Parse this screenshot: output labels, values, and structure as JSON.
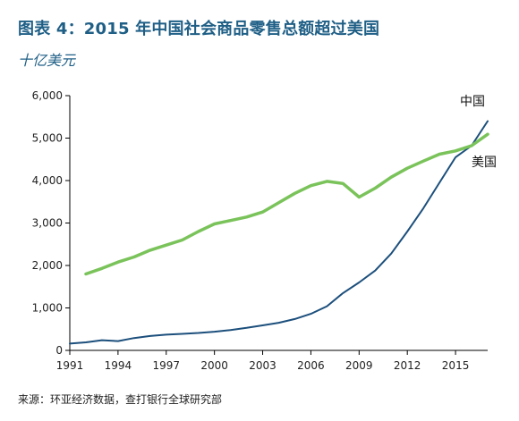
{
  "header": {
    "title": "图表 4：2015 年中国社会商品零售总额超过美国",
    "subtitle": "十亿美元"
  },
  "footer": {
    "source": "来源：环亚经济数据，查打银行全球研究部"
  },
  "colors": {
    "title": "#1f5f86",
    "china": "#1c4f7c",
    "usa": "#7ac35a",
    "axis": "#000000",
    "text": "#222222"
  },
  "chart_data": {
    "type": "line",
    "title": "图表 4：2015 年中国社会商品零售总额超过美国",
    "subtitle": "十亿美元",
    "xlabel": "",
    "ylabel": "",
    "xlim": [
      1991,
      2017
    ],
    "ylim": [
      0,
      6000
    ],
    "x_ticks": [
      1991,
      1994,
      1997,
      2000,
      2003,
      2006,
      2009,
      2012,
      2015
    ],
    "x_tick_labels": [
      "1991",
      "1994",
      "1997",
      "2000",
      "2003",
      "2006",
      "2009",
      "2012",
      "2015"
    ],
    "y_ticks": [
      0,
      1000,
      2000,
      3000,
      4000,
      5000,
      6000
    ],
    "y_tick_labels": [
      "0",
      "1,000",
      "2,000",
      "3,000",
      "4,000",
      "5,000",
      "6,000"
    ],
    "grid": false,
    "series": [
      {
        "name": "中国",
        "color": "#1c4f7c",
        "x": [
          1991,
          1992,
          1993,
          1994,
          1995,
          1996,
          1997,
          1998,
          1999,
          2000,
          2001,
          2002,
          2003,
          2004,
          2005,
          2006,
          2007,
          2008,
          2009,
          2010,
          2011,
          2012,
          2013,
          2014,
          2015,
          2016,
          2017
        ],
        "values": [
          160,
          190,
          240,
          220,
          290,
          340,
          370,
          390,
          410,
          440,
          480,
          530,
          590,
          650,
          740,
          860,
          1040,
          1350,
          1600,
          1880,
          2280,
          2800,
          3350,
          3950,
          4550,
          4820,
          5400
        ]
      },
      {
        "name": "美国",
        "color": "#7ac35a",
        "x": [
          1992,
          1993,
          1994,
          1995,
          1996,
          1997,
          1998,
          1999,
          2000,
          2001,
          2002,
          2003,
          2004,
          2005,
          2006,
          2007,
          2008,
          2009,
          2010,
          2011,
          2012,
          2013,
          2014,
          2015,
          2016,
          2017
        ],
        "values": [
          1800,
          1930,
          2080,
          2200,
          2360,
          2480,
          2600,
          2800,
          2980,
          3060,
          3140,
          3260,
          3480,
          3700,
          3880,
          3980,
          3930,
          3610,
          3820,
          4080,
          4290,
          4460,
          4620,
          4700,
          4820,
          5090
        ]
      }
    ]
  }
}
